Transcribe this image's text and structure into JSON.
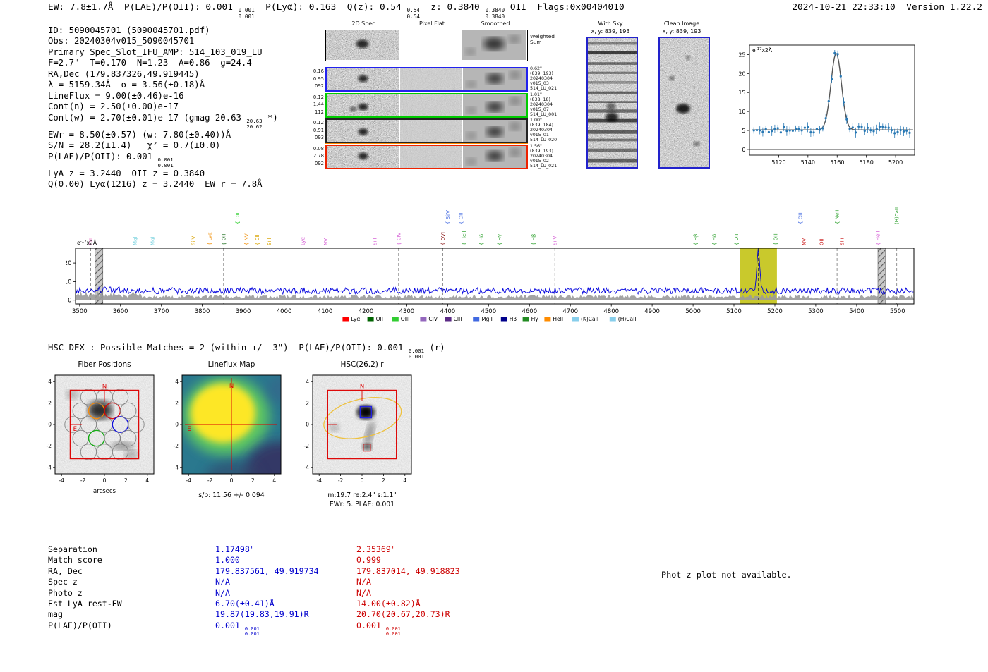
{
  "header": {
    "left": [
      {
        "t": "EW: 7.8±1.7Å  P(LAE)/P(OII): 0.001 "
      },
      {
        "sup": "0.001",
        "sub": "0.001"
      },
      {
        "t": "  P(Lyα): 0.163  Q(z): 0.54 "
      },
      {
        "sup": "0.54",
        "sub": "0.54"
      },
      {
        "t": "  z: 0.3840 "
      },
      {
        "sup": "0.3840",
        "sub": "0.3840"
      },
      {
        "t": " OII  Flags:0x00404010"
      }
    ],
    "timestamp": "2024-10-21 22:33:10  Version 1.22.2"
  },
  "info": {
    "lines": [
      [
        {
          "t": "ID: 5090045701 (5090045701.pdf)"
        }
      ],
      [
        {
          "t": "Obs: 20240304v015_5090045701"
        }
      ],
      [
        {
          "t": "Primary Spec_Slot_IFU_AMP: 514_103_019_LU"
        }
      ],
      [
        {
          "t": "F=2.7\"  T=0.170  N=1.23  A=0.86  g=24.4"
        }
      ],
      [
        {
          "t": "RA,Dec (179.837326,49.919445)"
        }
      ],
      [
        {
          "t": "λ = 5159.34Å  σ = 3.56(±0.18)Å"
        }
      ],
      [
        {
          "t": "LineFlux = 9.00(±0.46)e-16"
        }
      ],
      [
        {
          "t": "Cont(n) = 2.50(±0.00)e-17"
        }
      ],
      [
        {
          "t": "Cont(w) = 2.70(±0.01)e-17 (gmag 20.63 "
        },
        {
          "sup": "20.63",
          "sub": "20.62"
        },
        {
          "t": " *)"
        }
      ],
      [
        {
          "t": "EWr = 8.50(±0.57) (w: 7.80(±0.40))Å"
        }
      ],
      [
        {
          "t": "S/N = 28.2(±1.4)   χ² = 0.7(±0.0)"
        }
      ],
      [
        {
          "t": "P(LAE)/P(OII): 0.001 "
        },
        {
          "sup": "0.001",
          "sub": "0.001"
        }
      ],
      [
        {
          "t": "LyA z = 3.2440  OII z = 0.3840"
        }
      ],
      [
        {
          "t": "Q(0.00) Lyα(1216) z = 3.2440  EW r = 7.8Å"
        }
      ]
    ]
  },
  "spec2d": {
    "col_titles": [
      "2D Spec",
      "Pixel Flat",
      "Smoothed"
    ],
    "weighted_label_1": "Weighted",
    "weighted_label_2": "Sum",
    "rows": [
      {
        "left": [
          "0.16",
          "0.95",
          "092"
        ],
        "right": [
          "0.62\"",
          "(839, 193)",
          "20240304",
          "v015_03",
          "514_LU_021"
        ],
        "border": "#2222ee"
      },
      {
        "left": [
          "0.12",
          "1.44",
          "112"
        ],
        "right": [
          "1.01\"",
          "(838, 18)",
          "20240304",
          "v015_07",
          "514_LU_001"
        ],
        "border": "#00cc00"
      },
      {
        "left": [
          "0.12",
          "0.91",
          "093"
        ],
        "right": [
          "1.00\"",
          "(839, 184)",
          "20240304",
          "v015_01",
          "514_LU_020"
        ],
        "border": "#222222"
      },
      {
        "left": [
          "0.08",
          "2.78",
          "092"
        ],
        "right": [
          "1.56\"",
          "(839, 193)",
          "20240304",
          "v015_02",
          "514_LU_021"
        ],
        "border": "#ee2200"
      }
    ]
  },
  "withsky": {
    "title": "With Sky",
    "coords": "x, y: 839, 193"
  },
  "clean": {
    "title": "Clean Image",
    "coords": "x, y: 839, 193"
  },
  "chart_data": [
    {
      "id": "linefit",
      "type": "scatter",
      "title": "Emission line fit at detection wavelength",
      "unit_base": "e",
      "unit_exp": "-17",
      "unit_rest": "x2Å",
      "xlim": [
        5100,
        5213
      ],
      "ylim": [
        -1.5,
        27.5
      ],
      "x_ticks": [
        5120,
        5140,
        5160,
        5180,
        5200
      ],
      "y_ticks": [
        0,
        5,
        10,
        15,
        20,
        25
      ],
      "gauss": {
        "mu": 5159.34,
        "sigma": 3.56,
        "amplitude": 20.3,
        "baseline": 5.15
      },
      "point_color": "#2878b4",
      "fit_color": "#555555"
    },
    {
      "id": "fullspec",
      "type": "line",
      "title": "Full spectrum 3500-5500Å",
      "unit_base": "e",
      "unit_exp": "-17",
      "unit_rest": "x2Å",
      "xlim": [
        3490,
        5540
      ],
      "ylim": [
        -2,
        28
      ],
      "x_ticks": [
        3500,
        3600,
        3700,
        3800,
        3900,
        4000,
        4100,
        4200,
        4300,
        4400,
        4500,
        4600,
        4700,
        4800,
        4900,
        5000,
        5100,
        5200,
        5300,
        5400,
        5500
      ],
      "y_ticks": [
        0,
        10,
        20
      ],
      "baseline": 5.1,
      "peak": {
        "mu": 5159.3,
        "sigma": 3.8,
        "amplitude": 21
      },
      "highlight": [
        5115,
        5205
      ],
      "highlight_color": "#c9c92c",
      "hatch": [
        [
          3538,
          3557
        ],
        [
          5452,
          5470
        ]
      ],
      "line_color": "#0000dd",
      "lines": [
        {
          "n": "CIII",
          "x": 3527,
          "c": "#e878c8",
          "t": 0,
          "d": 1
        },
        {
          "n": "MgII",
          "x": 3636,
          "c": "#7fd4e0",
          "t": 0
        },
        {
          "n": "MgII",
          "x": 3678,
          "c": "#7fd4e0",
          "t": 0
        },
        {
          "n": "SiIV",
          "x": 3778,
          "c": "#d9a404",
          "t": 0
        },
        {
          "n": "Lyα",
          "x": 3818,
          "c": "#f08c00",
          "t": 0,
          "b": 1
        },
        {
          "n": "OII",
          "x": 3852,
          "c": "#1a6b1a",
          "t": 0,
          "b": 1,
          "d": 1
        },
        {
          "n": "OIII",
          "x": 3886,
          "c": "#22cc22",
          "t": 1,
          "b": 1
        },
        {
          "n": "NV",
          "x": 3908,
          "c": "#f08c00",
          "t": 0,
          "b": 1
        },
        {
          "n": "CII",
          "x": 3934,
          "c": "#d9a404",
          "t": 0,
          "b": 1
        },
        {
          "n": "SiII",
          "x": 3964,
          "c": "#d9a404",
          "t": 0
        },
        {
          "n": "Lyα",
          "x": 4046,
          "c": "#d45ad4",
          "t": 0
        },
        {
          "n": "NV",
          "x": 4102,
          "c": "#d45ad4",
          "t": 0
        },
        {
          "n": "SiII",
          "x": 4222,
          "c": "#d45ad4",
          "t": 0
        },
        {
          "n": "CIV",
          "x": 4280,
          "c": "#d45ad4",
          "t": 0,
          "b": 1,
          "d": 1
        },
        {
          "n": "OVI",
          "x": 4388,
          "c": "#8b1a1a",
          "t": 0,
          "b": 1,
          "d": 1
        },
        {
          "n": "SiIV",
          "x": 4400,
          "c": "#4169e1",
          "t": 1,
          "b": 1
        },
        {
          "n": "OII",
          "x": 4432,
          "c": "#4169e1",
          "t": 1,
          "b": 1
        },
        {
          "n": "HeII",
          "x": 4440,
          "c": "#2ca02c",
          "t": 0,
          "b": 1
        },
        {
          "n": "Hδ",
          "x": 4482,
          "c": "#2ca02c",
          "t": 0,
          "b": 1
        },
        {
          "n": "Hγ",
          "x": 4526,
          "c": "#2ca02c",
          "t": 0,
          "b": 1
        },
        {
          "n": "Hβ",
          "x": 4610,
          "c": "#2ca02c",
          "t": 0,
          "b": 1
        },
        {
          "n": "SiIV",
          "x": 4662,
          "c": "#d45ad4",
          "t": 0,
          "d": 1
        },
        {
          "n": "Hβ",
          "x": 5006,
          "c": "#2ca02c",
          "t": 0,
          "b": 1
        },
        {
          "n": "Hδ",
          "x": 5052,
          "c": "#2ca02c",
          "t": 0,
          "b": 1
        },
        {
          "n": "OIII",
          "x": 5106,
          "c": "#2ca02c",
          "t": 0,
          "b": 1
        },
        {
          "n": "OIII",
          "x": 5202,
          "c": "#2ca02c",
          "t": 0,
          "b": 1
        },
        {
          "n": "OIII",
          "x": 5262,
          "c": "#4169e1",
          "t": 1,
          "b": 1
        },
        {
          "n": "NV",
          "x": 5272,
          "c": "#cc2222",
          "t": 0
        },
        {
          "n": "OIII",
          "x": 5314,
          "c": "#cc2222",
          "t": 0
        },
        {
          "n": "NeIII",
          "x": 5352,
          "c": "#2ca02c",
          "t": 1,
          "b": 1,
          "d": 1
        },
        {
          "n": "SiII",
          "x": 5364,
          "c": "#cc2222",
          "t": 0
        },
        {
          "n": "HeII",
          "x": 5452,
          "c": "#d45ad4",
          "t": 0,
          "b": 1
        },
        {
          "n": "(H)CaII",
          "x": 5498,
          "c": "#2ca02c",
          "t": 1,
          "d": 1
        }
      ],
      "legend": [
        {
          "label": "Lyα",
          "color": "#ff0000"
        },
        {
          "label": "OII",
          "color": "#006400"
        },
        {
          "label": "OIII",
          "color": "#32cd32"
        },
        {
          "label": "CIV",
          "color": "#9467bd"
        },
        {
          "label": "CIII",
          "color": "#5b2a86"
        },
        {
          "label": "MgII",
          "color": "#4169e1"
        },
        {
          "label": "Hβ",
          "color": "#00008b"
        },
        {
          "label": "Hγ",
          "color": "#228b22"
        },
        {
          "label": "HeII",
          "color": "#ff8c00"
        },
        {
          "label": "(K)CaII",
          "color": "#87ceeb"
        },
        {
          "label": "(H)CaII",
          "color": "#87ceeb"
        }
      ]
    }
  ],
  "hsc": {
    "header": [
      {
        "t": "HSC-DEX : Possible Matches = 2 (within +/- 3\")  P(LAE)/P(OII): 0.001 "
      },
      {
        "sup": "0.001",
        "sub": "0.001"
      },
      {
        "t": " (r)"
      }
    ],
    "axis_ticks": [
      "-4",
      "-2",
      "0",
      "2",
      "4"
    ],
    "fiber_colors": {
      "default": "#808080",
      "orange": "#ff8c00",
      "red": "#dd0000",
      "blue": "#0000dd",
      "green": "#00aa00"
    },
    "cutouts": [
      {
        "title": "Fiber Positions",
        "xlabel": "arcsecs"
      },
      {
        "title": "Lineflux Map",
        "caption": "s/b: 11.56 +/- 0.094"
      },
      {
        "title": "HSC(26.2) r",
        "caption1": "m:19.7 re:2.4\" s:1.1\"",
        "caption2": "EWr: 5. PLAE: 0.001"
      }
    ]
  },
  "matches": {
    "row_labels": [
      "Separation",
      "Match score",
      "RA, Dec",
      "Spec z",
      "Photo z",
      "Est LyA rest-EW",
      "mag",
      "P(LAE)/P(OII)"
    ],
    "col1": {
      "color": "#0000cd",
      "values": [
        [
          {
            "t": "1.17498\""
          }
        ],
        [
          {
            "t": "1.000"
          }
        ],
        [
          {
            "t": "179.837561, 49.919734"
          }
        ],
        [
          {
            "t": "N/A"
          }
        ],
        [
          {
            "t": "N/A"
          }
        ],
        [
          {
            "t": "6.70(±0.41)Å"
          }
        ],
        [
          {
            "t": "19.87(19.83,19.91)R"
          }
        ],
        [
          {
            "t": "0.001 "
          },
          {
            "sup": "0.001",
            "sub": "0.001"
          }
        ]
      ]
    },
    "col2": {
      "color": "#cc0000",
      "values": [
        [
          {
            "t": "2.35369\""
          }
        ],
        [
          {
            "t": "0.999"
          }
        ],
        [
          {
            "t": "179.837014, 49.918823"
          }
        ],
        [
          {
            "t": "N/A"
          }
        ],
        [
          {
            "t": "N/A"
          }
        ],
        [
          {
            "t": "14.00(±0.82)Å"
          }
        ],
        [
          {
            "t": "20.70(20.67,20.73)R"
          }
        ],
        [
          {
            "t": "0.001 "
          },
          {
            "sup": "0.001",
            "sub": "0.001"
          }
        ]
      ]
    }
  },
  "photz_note": "Phot z plot not available."
}
